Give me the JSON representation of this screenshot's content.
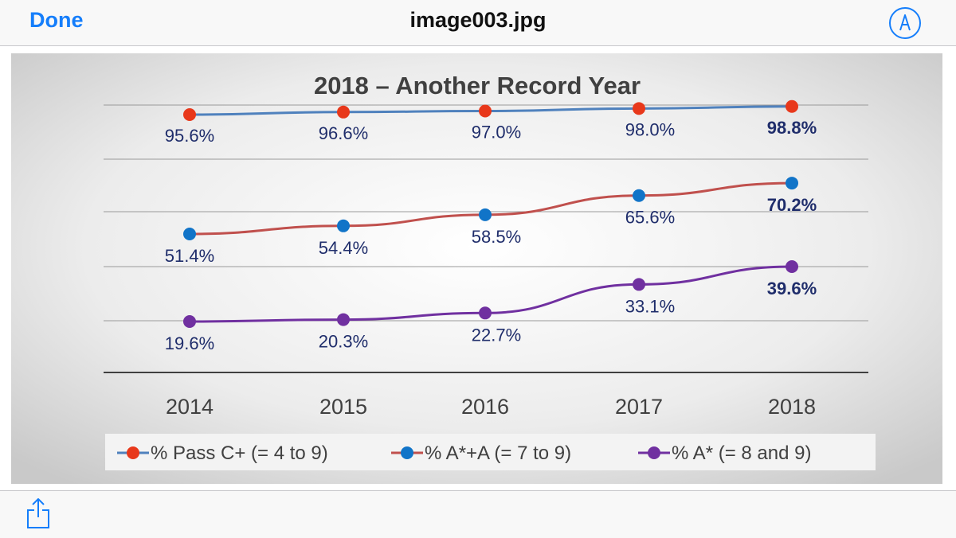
{
  "nav": {
    "done_label": "Done",
    "title": "image003.jpg"
  },
  "icons": {
    "markup": "markup-pen-icon",
    "share": "share-icon"
  },
  "colors": {
    "accent": "#157efb",
    "line_pass": "#4f81bd",
    "dot_pass": "#e8381b",
    "line_astar_a": "#c0504d",
    "dot_astar_a": "#1174c8",
    "line_astar": "#7030a0",
    "label": "#1f2d6b"
  },
  "chart_data": {
    "type": "line",
    "title": "2018 – Another Record Year",
    "categories": [
      "2014",
      "2015",
      "2016",
      "2017",
      "2018"
    ],
    "series": [
      {
        "name": "% Pass C+ (= 4 to 9)",
        "values": [
          95.6,
          96.6,
          97.0,
          98.0,
          98.8
        ],
        "labels": [
          "95.6%",
          "96.6%",
          "97.0%",
          "98.0%",
          "98.8%"
        ]
      },
      {
        "name": "% A*+A (= 7 to 9)",
        "values": [
          51.4,
          54.4,
          58.5,
          65.6,
          70.2
        ],
        "labels": [
          "51.4%",
          "54.4%",
          "58.5%",
          "65.6%",
          "70.2%"
        ]
      },
      {
        "name": "% A* (= 8 and 9)",
        "values": [
          19.6,
          20.3,
          22.7,
          33.1,
          39.6
        ],
        "labels": [
          "19.6%",
          "20.3%",
          "22.7%",
          "33.1%",
          "39.6%"
        ]
      }
    ],
    "ylim": [
      0,
      110
    ],
    "grid": true,
    "legend_position": "bottom"
  }
}
